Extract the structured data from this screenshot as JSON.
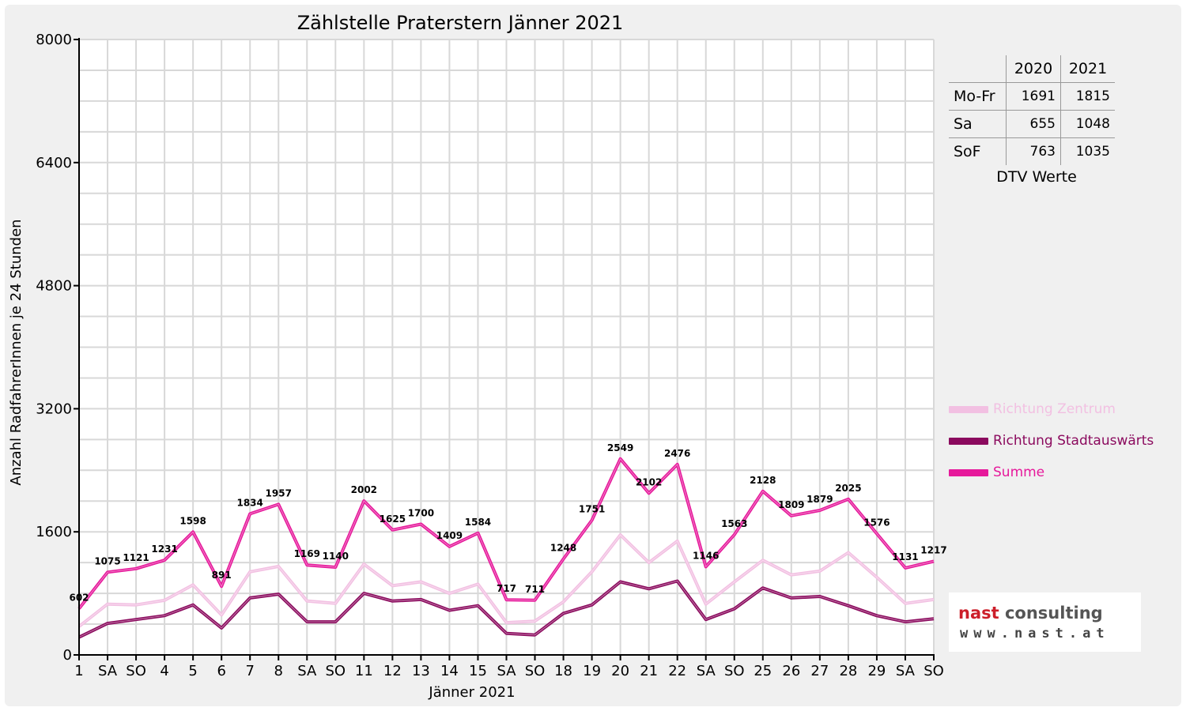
{
  "chart_data": {
    "type": "line",
    "title": "Zählstelle Praterstern Jänner 2021",
    "xlabel": "Jänner 2021",
    "ylabel": "Anzahl RadfahrerInnen je 24 Stunden",
    "ylim": [
      0,
      8000
    ],
    "yticks": [
      "0",
      "1600",
      "3200",
      "4800",
      "6400",
      "8000"
    ],
    "categories": [
      "1",
      "SA",
      "SO",
      "4",
      "5",
      "6",
      "7",
      "8",
      "SA",
      "SO",
      "11",
      "12",
      "13",
      "14",
      "15",
      "SA",
      "SO",
      "18",
      "19",
      "20",
      "21",
      "22",
      "SA",
      "SO",
      "25",
      "26",
      "27",
      "28",
      "29",
      "SA",
      "SO"
    ],
    "holiday_flags": [
      true,
      false,
      true,
      false,
      false,
      true,
      false,
      false,
      false,
      true,
      false,
      false,
      false,
      false,
      false,
      false,
      true,
      false,
      false,
      false,
      false,
      false,
      false,
      true,
      false,
      false,
      false,
      false,
      false,
      false,
      true
    ],
    "grid": true,
    "legend_position": "right",
    "series": [
      {
        "name": "Richtung Zentrum",
        "color": "#f2c0e2",
        "values": [
          370,
          660,
          650,
          710,
          910,
          520,
          1080,
          1150,
          700,
          670,
          1180,
          900,
          950,
          800,
          920,
          420,
          440,
          690,
          1080,
          1560,
          1200,
          1480,
          660,
          950,
          1230,
          1040,
          1090,
          1330,
          1010,
          670,
          720
        ]
      },
      {
        "name": "Richtung Stadtauswärts",
        "color": "#8b0a5e",
        "values": [
          230,
          410,
          460,
          510,
          650,
          350,
          740,
          790,
          430,
          430,
          800,
          700,
          720,
          580,
          640,
          280,
          260,
          540,
          650,
          950,
          860,
          960,
          460,
          600,
          870,
          740,
          760,
          640,
          510,
          430,
          470
        ]
      },
      {
        "name": "Summe",
        "color": "#e6199b",
        "values": [
          602,
          1075,
          1121,
          1231,
          1598,
          891,
          1834,
          1957,
          1169,
          1140,
          2002,
          1625,
          1700,
          1409,
          1584,
          717,
          711,
          1248,
          1751,
          2549,
          2102,
          2476,
          1146,
          1563,
          2128,
          1809,
          1879,
          2025,
          1576,
          1131,
          1217
        ],
        "labels": [
          "602",
          "1075",
          "1121",
          "1231",
          "1598",
          "891",
          "1834",
          "1957",
          "1169",
          "1140",
          "2002",
          "1625",
          "1700",
          "1409",
          "1584",
          "717",
          "711",
          "1248",
          "1751",
          "2549",
          "2102",
          "2476",
          "1146",
          "1563",
          "2128",
          "1809",
          "1879",
          "2025",
          "1576",
          "1131",
          "1217"
        ]
      }
    ],
    "weekend_color": "#ff0000"
  },
  "dtv_table": {
    "columns": [
      "2020",
      "2021"
    ],
    "rows": [
      {
        "label": "Mo-Fr",
        "v2020": "1691",
        "v2021": "1815"
      },
      {
        "label": "Sa",
        "v2020": "655",
        "v2021": "1048"
      },
      {
        "label": "SoF",
        "v2020": "763",
        "v2021": "1035"
      }
    ],
    "caption": "DTV Werte"
  },
  "logo": {
    "name_part1": "nast",
    "name_part2": " consulting",
    "url": "www.nast.at",
    "color1": "#cc1f2a",
    "color2": "#555555"
  }
}
